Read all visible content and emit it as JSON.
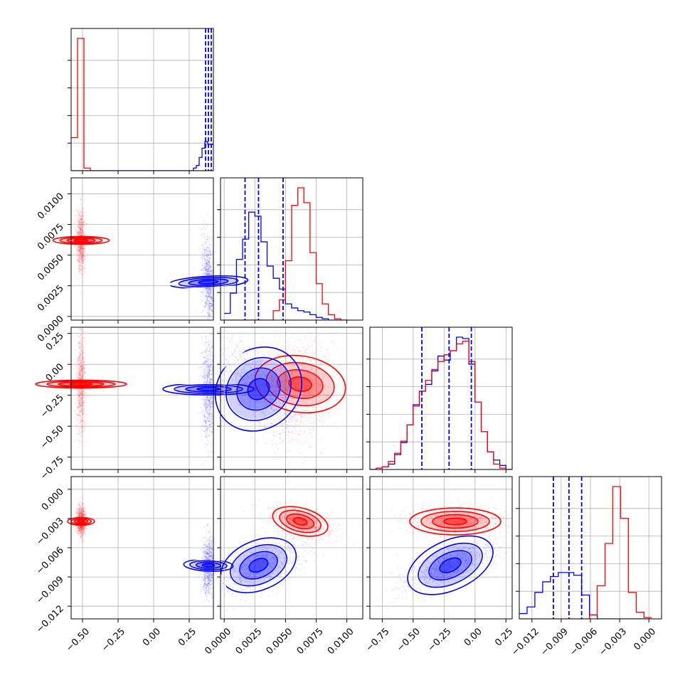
{
  "colors": {
    "red": "#ff0000",
    "blue": "#0000ff",
    "grid": "#b0b0b0"
  },
  "chart_data": {
    "type": "corner",
    "grid": true,
    "series": [
      {
        "color": "#ff0000",
        "marginal_quantiles": null
      },
      {
        "color": "#0000ff",
        "marginal_quantiles": [
          [
            0.365,
            0.385,
            0.405
          ],
          [
            0.0017,
            0.0028,
            0.0048
          ],
          [
            -0.43,
            -0.21,
            -0.03
          ],
          [
            -0.0098,
            -0.0082,
            -0.0069
          ]
        ]
      }
    ],
    "parameters": [
      {
        "range": [
          -0.58,
          0.42
        ],
        "ticks": [
          -0.5,
          -0.25,
          0.0,
          0.25
        ],
        "tick_labels": [
          "−0.50",
          "−0.25",
          "0.00",
          "0.25"
        ]
      },
      {
        "range": [
          -0.0003,
          0.0113
        ],
        "ticks": [
          0.0,
          0.0025,
          0.005,
          0.0075,
          0.01
        ],
        "tick_labels": [
          "0.0000",
          "0.0025",
          "0.0050",
          "0.0075",
          "0.0100"
        ]
      },
      {
        "range": [
          -0.85,
          0.3
        ],
        "ticks": [
          -0.75,
          -0.5,
          -0.25,
          0.0,
          0.25
        ],
        "tick_labels": [
          "−0.75",
          "−0.50",
          "−0.25",
          "0.00",
          "0.25"
        ]
      },
      {
        "range": [
          -0.0133,
          0.0013
        ],
        "ticks": [
          -0.012,
          -0.009,
          -0.006,
          -0.003,
          0.0
        ],
        "tick_labels": [
          "−0.012",
          "−0.009",
          "−0.006",
          "−0.003",
          "0.000"
        ]
      }
    ],
    "marginals": [
      {
        "edges": [
          -0.58,
          -0.535,
          -0.49,
          -0.445,
          0.28,
          0.3,
          0.32,
          0.34,
          0.36,
          0.38,
          0.4,
          0.42
        ],
        "red": [
          0.25,
          1.0,
          0.02,
          0,
          0,
          0,
          0,
          0,
          0,
          0,
          0
        ],
        "blue": [
          0,
          0,
          0,
          0,
          0.02,
          0.04,
          0.1,
          0.17,
          0.22,
          0.2,
          0.2
        ]
      },
      {
        "edges": [
          0.0,
          0.0005,
          0.001,
          0.0015,
          0.002,
          0.0025,
          0.003,
          0.0035,
          0.004,
          0.0045,
          0.005,
          0.0055,
          0.006,
          0.0065,
          0.007,
          0.0075,
          0.008,
          0.0085,
          0.009,
          0.0095,
          0.01
        ],
        "red": [
          0,
          0,
          0,
          0,
          0,
          0,
          0,
          0,
          0.07,
          0.15,
          0.44,
          0.85,
          0.98,
          0.87,
          0.5,
          0.27,
          0.12,
          0.04,
          0.01,
          0
        ],
        "blue": [
          0.05,
          0.2,
          0.45,
          0.6,
          0.8,
          0.77,
          0.58,
          0.4,
          0.31,
          0.23,
          0.12,
          0.09,
          0.07,
          0.06,
          0.04,
          0.02,
          0.01,
          0,
          0,
          0
        ]
      },
      {
        "edges": [
          -0.85,
          -0.8,
          -0.75,
          -0.7,
          -0.65,
          -0.6,
          -0.55,
          -0.5,
          -0.45,
          -0.4,
          -0.35,
          -0.3,
          -0.25,
          -0.2,
          -0.15,
          -0.1,
          -0.05,
          0.0,
          0.05,
          0.1,
          0.15,
          0.2,
          0.25,
          0.3
        ],
        "red": [
          0,
          0.01,
          0.02,
          0.06,
          0.12,
          0.21,
          0.33,
          0.47,
          0.58,
          0.66,
          0.74,
          0.8,
          0.85,
          0.88,
          0.93,
          0.95,
          0.8,
          0.5,
          0.28,
          0.13,
          0.04,
          0.01,
          0
        ],
        "blue": [
          0,
          0.01,
          0.02,
          0.04,
          0.11,
          0.2,
          0.33,
          0.48,
          0.58,
          0.63,
          0.73,
          0.84,
          0.81,
          0.88,
          0.98,
          0.97,
          0.78,
          0.5,
          0.28,
          0.13,
          0.07,
          0.03,
          0
        ]
      },
      {
        "edges": [
          -0.0133,
          -0.0125,
          -0.0117,
          -0.0109,
          -0.0101,
          -0.0093,
          -0.0085,
          -0.0077,
          -0.0069,
          -0.0061,
          -0.0053,
          -0.0045,
          -0.0037,
          -0.0029,
          -0.0021,
          -0.0013,
          -0.0005,
          0.0003
        ],
        "red": [
          0,
          0,
          0,
          0,
          0,
          0,
          0,
          0,
          0,
          0.03,
          0.25,
          0.57,
          1.0,
          0.76,
          0.2,
          0.05,
          0.01
        ],
        "blue": [
          0.04,
          0.09,
          0.2,
          0.28,
          0.32,
          0.35,
          0.35,
          0.33,
          0.18,
          0.03,
          0,
          0,
          0,
          0,
          0,
          0,
          0
        ]
      }
    ],
    "clusters": {
      "red": {
        "means": [
          -0.51,
          0.0062,
          -0.16,
          -0.0033
        ],
        "stds": [
          0.012,
          0.001,
          0.16,
          0.0006
        ]
      },
      "blue": {
        "means": [
          0.385,
          0.0028,
          -0.2,
          -0.0078
        ],
        "stds": [
          0.018,
          0.0014,
          0.16,
          0.0011
        ]
      }
    },
    "pairs": [
      {
        "row": 1,
        "col": 0,
        "red": {
          "corr": 0.0
        },
        "blue": {
          "corr": -0.35
        }
      },
      {
        "row": 2,
        "col": 0,
        "red": {
          "corr": 0.0
        },
        "blue": {
          "corr": 0.0
        }
      },
      {
        "row": 2,
        "col": 1,
        "red": {
          "corr": 0.15
        },
        "blue": {
          "corr": -0.7
        }
      },
      {
        "row": 3,
        "col": 0,
        "red": {
          "corr": 0.0
        },
        "blue": {
          "corr": 0.15
        }
      },
      {
        "row": 3,
        "col": 1,
        "red": {
          "corr": -0.45
        },
        "blue": {
          "corr": 0.5
        }
      },
      {
        "row": 3,
        "col": 2,
        "red": {
          "corr": 0.0
        },
        "blue": {
          "corr": 0.75
        }
      }
    ],
    "contour_levels_sigma": [
      0.5,
      1.0,
      1.5,
      2.0
    ]
  }
}
